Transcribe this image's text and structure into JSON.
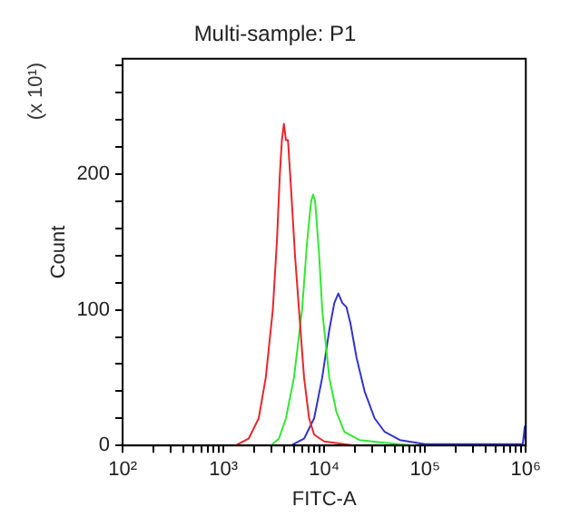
{
  "chart_data": {
    "type": "line",
    "title": "Multi-sample: P1",
    "xlabel": "FITC-A",
    "ylabel": "Count",
    "annotations": [
      "(x 10¹)"
    ],
    "log": "x",
    "grid": false,
    "legend": false,
    "marker": "none",
    "line_style": "solid",
    "xlim": [
      100,
      1000000
    ],
    "xticks": [
      {
        "value": 100,
        "label": "10²"
      },
      {
        "value": 200,
        "label": null
      },
      {
        "value": 300,
        "label": null
      },
      {
        "value": 400,
        "label": null
      },
      {
        "value": 500,
        "label": null
      },
      {
        "value": 600,
        "label": null
      },
      {
        "value": 700,
        "label": null
      },
      {
        "value": 800,
        "label": null
      },
      {
        "value": 900,
        "label": null
      },
      {
        "value": 1000,
        "label": "10³"
      },
      {
        "value": 2000,
        "label": null
      },
      {
        "value": 3000,
        "label": null
      },
      {
        "value": 4000,
        "label": null
      },
      {
        "value": 5000,
        "label": null
      },
      {
        "value": 6000,
        "label": null
      },
      {
        "value": 7000,
        "label": null
      },
      {
        "value": 8000,
        "label": null
      },
      {
        "value": 9000,
        "label": null
      },
      {
        "value": 10000,
        "label": "10⁴"
      },
      {
        "value": 20000,
        "label": null
      },
      {
        "value": 30000,
        "label": null
      },
      {
        "value": 40000,
        "label": null
      },
      {
        "value": 50000,
        "label": null
      },
      {
        "value": 60000,
        "label": null
      },
      {
        "value": 70000,
        "label": null
      },
      {
        "value": 80000,
        "label": null
      },
      {
        "value": 90000,
        "label": null
      },
      {
        "value": 100000,
        "label": "10⁵"
      },
      {
        "value": 200000,
        "label": null
      },
      {
        "value": 300000,
        "label": null
      },
      {
        "value": 400000,
        "label": null
      },
      {
        "value": 500000,
        "label": null
      },
      {
        "value": 600000,
        "label": null
      },
      {
        "value": 700000,
        "label": null
      },
      {
        "value": 800000,
        "label": null
      },
      {
        "value": 900000,
        "label": null
      },
      {
        "value": 1000000,
        "label": "10⁶"
      }
    ],
    "ylim": [
      0,
      285
    ],
    "yticks": [
      0,
      {
        "value": 20,
        "label": null
      },
      {
        "value": 40,
        "label": null
      },
      {
        "value": 60,
        "label": null
      },
      {
        "value": 80,
        "label": null
      },
      100,
      {
        "value": 120,
        "label": null
      },
      {
        "value": 140,
        "label": null
      },
      {
        "value": 160,
        "label": null
      },
      {
        "value": 180,
        "label": null
      },
      200,
      {
        "value": 220,
        "label": null
      },
      {
        "value": 240,
        "label": null
      },
      {
        "value": 260,
        "label": null
      },
      {
        "value": 280,
        "label": null
      }
    ],
    "series": [
      {
        "color": "#e8262b",
        "x": [
          1318,
          1778,
          2239,
          2630,
          3090,
          3390,
          3630,
          3800,
          3980,
          4170,
          4370,
          4680,
          5130,
          5620,
          6310,
          7080,
          7940,
          10000,
          15850,
          19950
        ],
        "values": [
          0,
          5,
          20,
          50,
          100,
          150,
          200,
          225,
          237,
          225,
          225,
          190,
          140,
          100,
          50,
          20,
          8,
          3,
          1,
          0
        ]
      },
      {
        "color": "#33e633",
        "x": [
          2950,
          3550,
          4170,
          5010,
          6030,
          6760,
          7410,
          7760,
          8130,
          8910,
          9550,
          11220,
          13180,
          15850,
          22390,
          39810,
          79430
        ],
        "values": [
          0,
          5,
          20,
          50,
          100,
          150,
          180,
          185,
          180,
          140,
          100,
          50,
          25,
          10,
          4,
          2,
          0
        ]
      },
      {
        "color": "#3333cc",
        "x": [
          4680,
          6310,
          7940,
          9550,
          11220,
          12590,
          13800,
          15140,
          16600,
          18200,
          20890,
          25120,
          31620,
          39810,
          56230,
          100000,
          316200,
          933000,
          977000,
          1000000
        ],
        "values": [
          0,
          5,
          20,
          50,
          85,
          105,
          112,
          105,
          102,
          90,
          65,
          40,
          20,
          10,
          4,
          1,
          1,
          1,
          14,
          0
        ]
      }
    ]
  }
}
